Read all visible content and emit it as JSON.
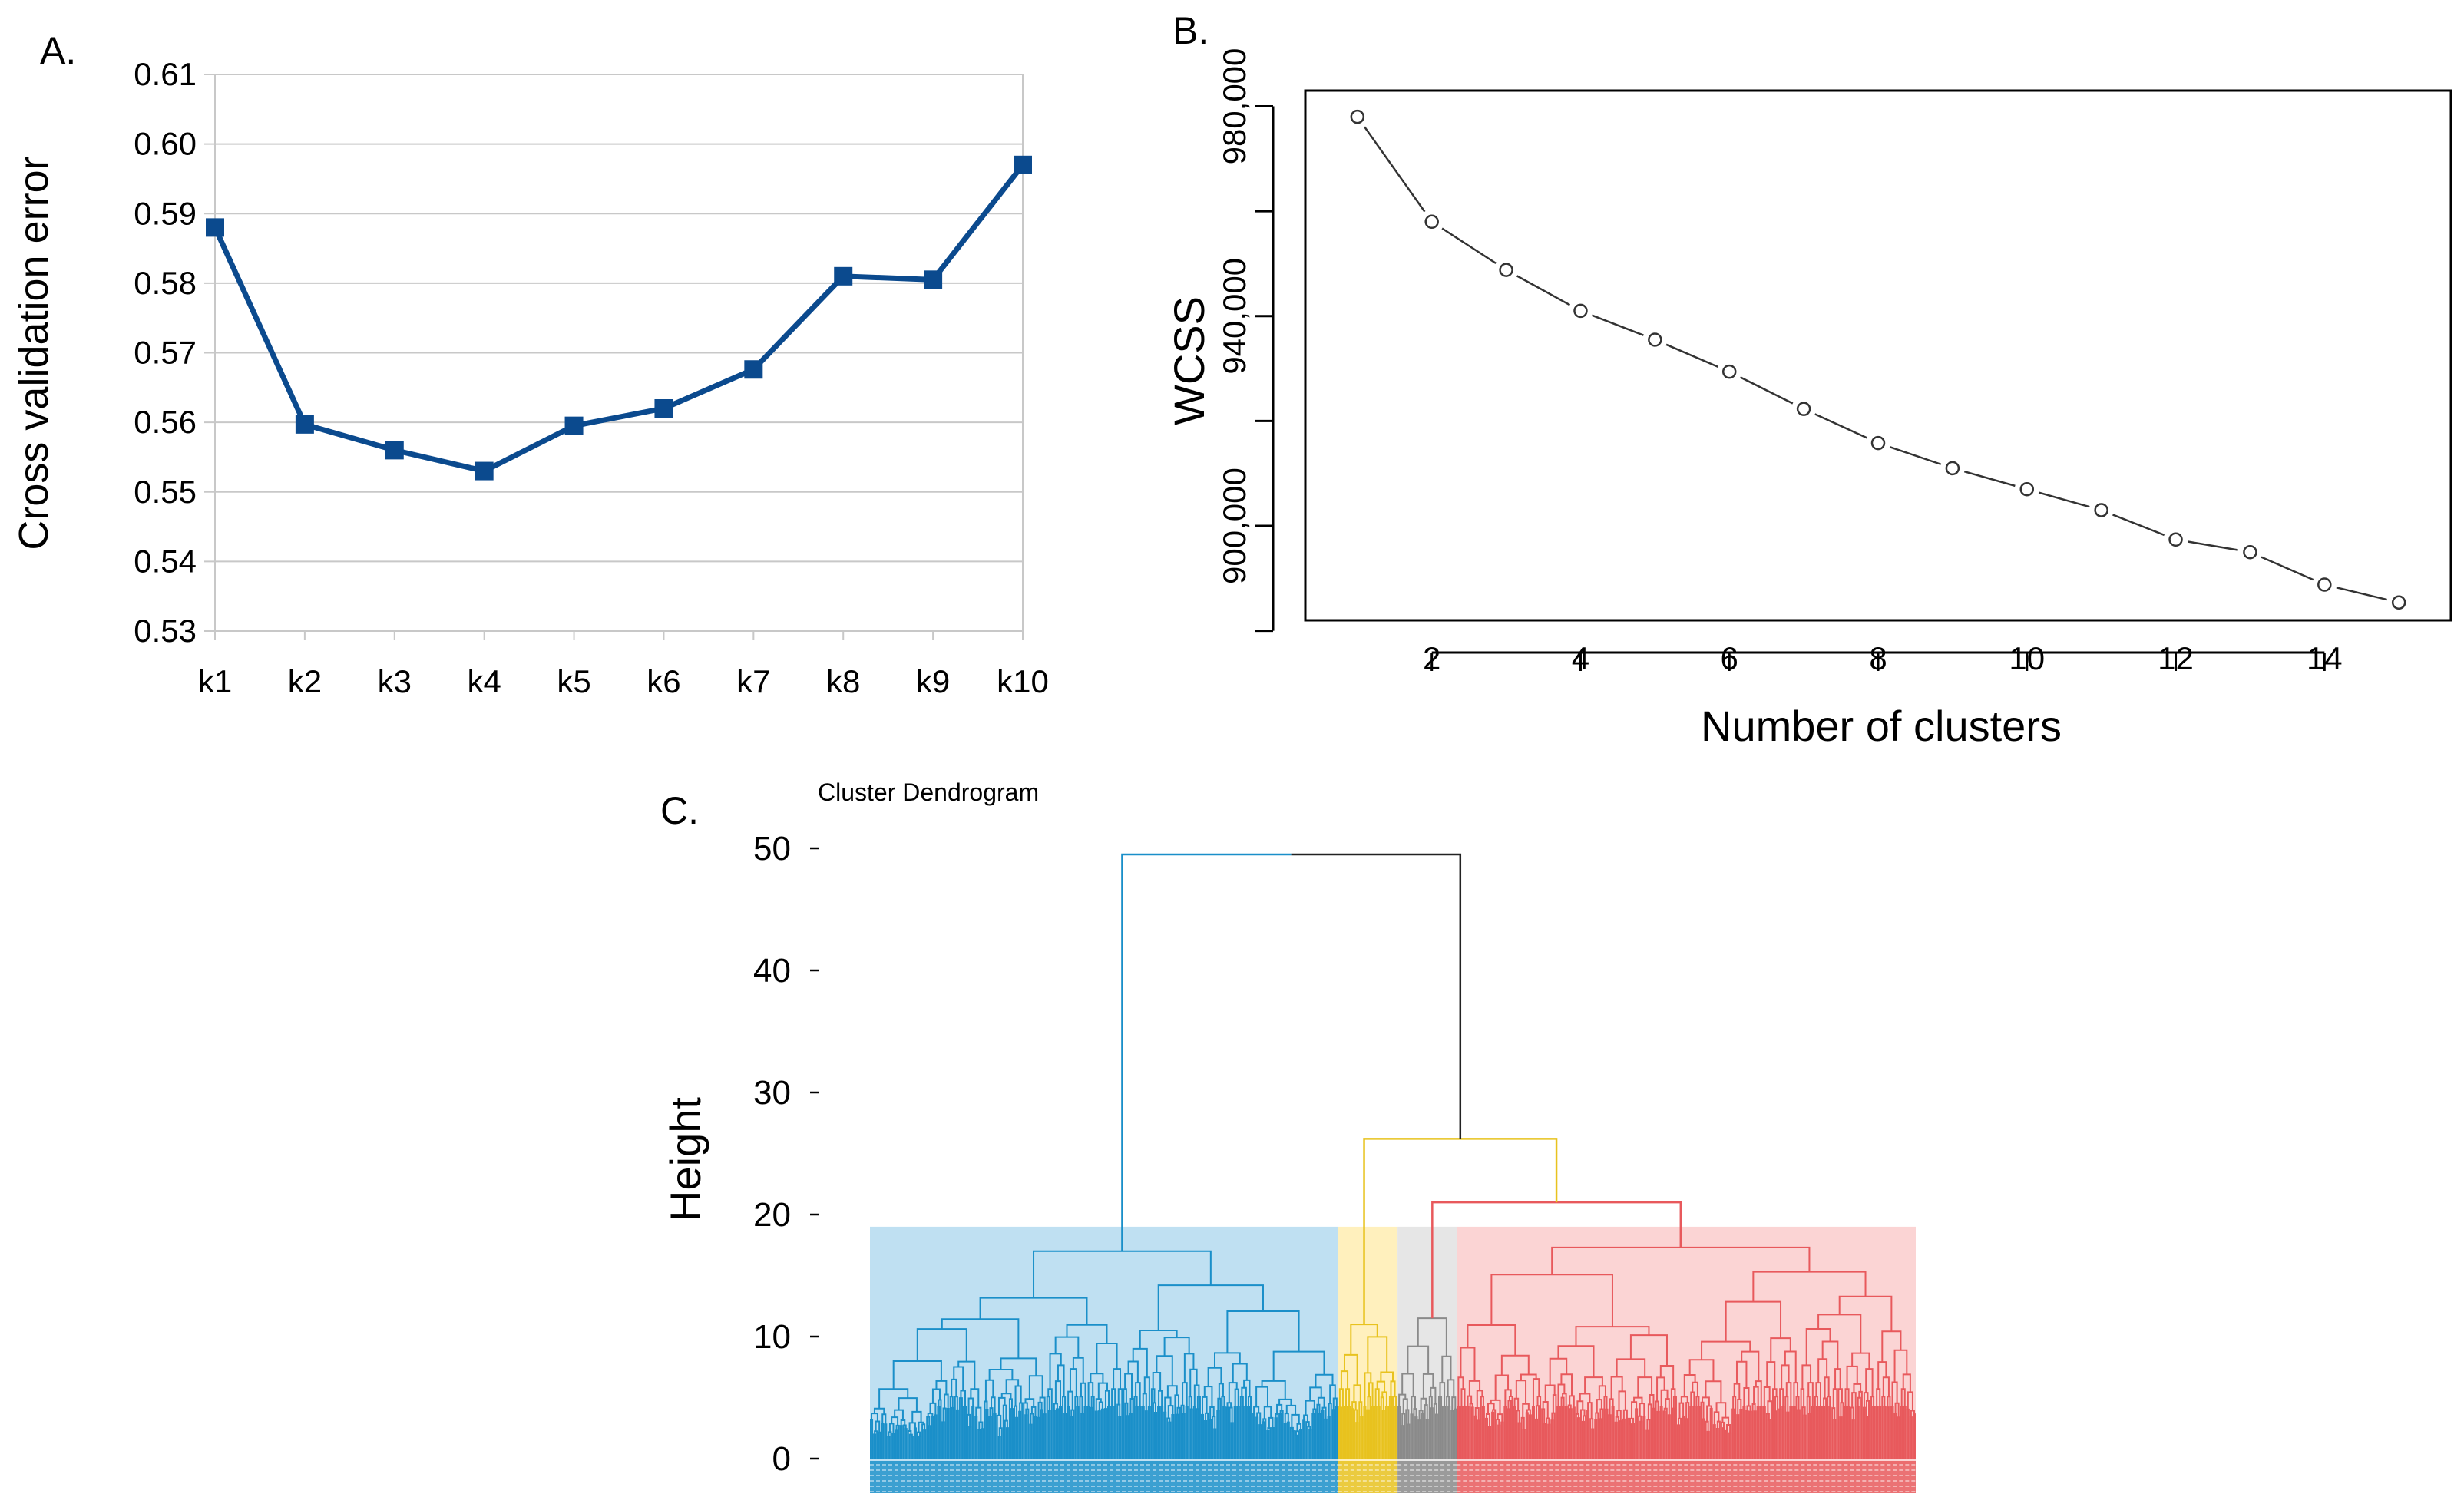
{
  "chart_data": [
    {
      "panel_label": "A.",
      "type": "line",
      "ylabel": "Cross validation error",
      "ylim": [
        0.53,
        0.61
      ],
      "yticks": [
        "0.53",
        "0.54",
        "0.55",
        "0.56",
        "0.57",
        "0.58",
        "0.59",
        "0.60",
        "0.61"
      ],
      "grid": true,
      "categories": [
        "k1",
        "k2",
        "k3",
        "k4",
        "k5",
        "k6",
        "k7",
        "k8",
        "k9",
        "k10"
      ],
      "series": [
        {
          "values": [
            0.588,
            0.5597,
            0.556,
            0.553,
            0.5595,
            0.562,
            0.5676,
            0.581,
            0.5805,
            0.597
          ],
          "color": "#0b4a8e"
        }
      ]
    },
    {
      "panel_label": "B.",
      "type": "line",
      "xlabel": "Number of clusters",
      "ylabel": "WCSS",
      "xlim": [
        0.3,
        15.7
      ],
      "ylim": [
        882000,
        983000
      ],
      "xticks": [
        2,
        4,
        6,
        8,
        10,
        12,
        14
      ],
      "yticks": [
        {
          "value": 980000,
          "label": "980,000"
        },
        {
          "value": 960000,
          "label": ""
        },
        {
          "value": 940000,
          "label": "940,000"
        },
        {
          "value": 920000,
          "label": ""
        },
        {
          "value": 900000,
          "label": "900,000"
        },
        {
          "value": 880000,
          "label": ""
        }
      ],
      "grid": false,
      "x": [
        1,
        2,
        3,
        4,
        5,
        6,
        7,
        8,
        9,
        10,
        11,
        12,
        13,
        14,
        15
      ],
      "series": [
        {
          "values": [
            978000,
            958000,
            948800,
            941000,
            935500,
            929400,
            922300,
            915800,
            911000,
            907000,
            903000,
            897400,
            895000,
            888800,
            885400
          ],
          "color": "#333333"
        }
      ]
    },
    {
      "panel_label": "C.",
      "type": "dendrogram",
      "title": "Cluster Dendrogram",
      "ylabel": "Height",
      "ylim": [
        0,
        50
      ],
      "yticks": [
        0,
        10,
        20,
        30,
        40,
        50
      ],
      "cut_height": 19,
      "root_height": 49.5,
      "merges": [
        {
          "left": "blue",
          "right": "rest",
          "height": 49.5
        },
        {
          "left": "yellow",
          "right": "grey-red",
          "height": 26.2
        },
        {
          "left": "grey",
          "right": "red",
          "height": 21.0
        }
      ],
      "clusters": [
        {
          "name": "blue",
          "color": "#1a8fc9",
          "band": "#bfe0f2",
          "height": 17.0,
          "leaf_range": [
            0,
            300
          ]
        },
        {
          "name": "yellow",
          "color": "#e8c21e",
          "band": "#fff0bd",
          "height": 11.0,
          "leaf_range": [
            300,
            338
          ]
        },
        {
          "name": "grey",
          "color": "#8a8a8a",
          "band": "#e6e6e6",
          "height": 11.5,
          "leaf_range": [
            338,
            376
          ]
        },
        {
          "name": "red",
          "color": "#e8595c",
          "band": "#fbd4d4",
          "height": 17.3,
          "leaf_range": [
            376,
            670
          ]
        }
      ]
    }
  ]
}
